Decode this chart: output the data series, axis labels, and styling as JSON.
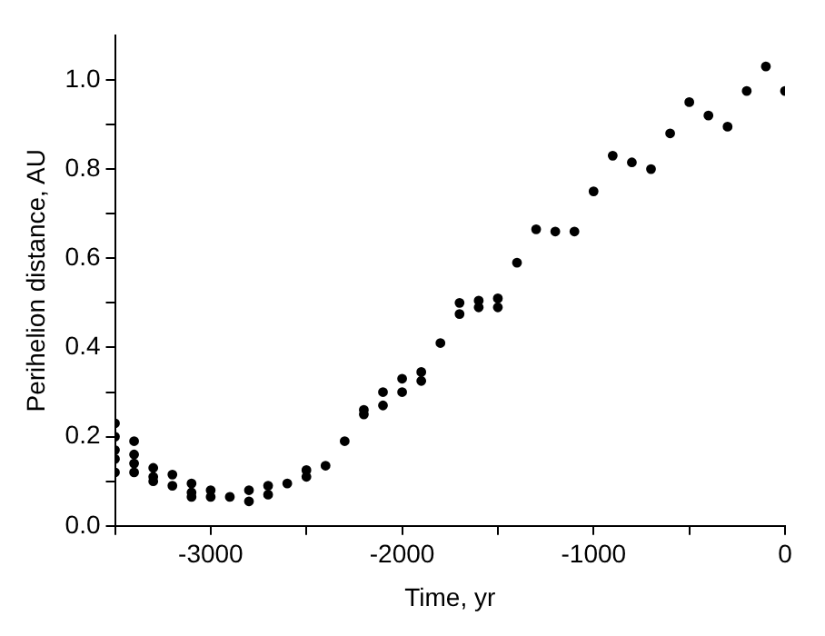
{
  "chart_data": {
    "type": "scatter",
    "xlabel": "Time, yr",
    "ylabel": "Perihelion distance, AU",
    "xlim": [
      -3500,
      0
    ],
    "xticks": [
      {
        "value": -3500,
        "label": null
      },
      -3000,
      {
        "value": -2500,
        "label": null
      },
      -2000,
      {
        "value": -1500,
        "label": null
      },
      -1000,
      {
        "value": -500,
        "label": null
      },
      0
    ],
    "ylim": [
      0,
      1.1
    ],
    "yticks": [
      {
        "value": 0,
        "label": "0.0"
      },
      {
        "value": 0.1,
        "label": null
      },
      {
        "value": 0.2,
        "label": "0.2"
      },
      {
        "value": 0.3,
        "label": null
      },
      {
        "value": 0.4,
        "label": "0.4"
      },
      {
        "value": 0.5,
        "label": null
      },
      {
        "value": 0.6,
        "label": "0.6"
      },
      {
        "value": 0.7,
        "label": null
      },
      {
        "value": 0.8,
        "label": "0.8"
      },
      {
        "value": 0.9,
        "label": null
      },
      {
        "value": 1.0,
        "label": "1.0"
      }
    ],
    "grid": false,
    "legend": false,
    "marker": "circle",
    "series": [
      {
        "color": "#000000",
        "x": [
          -3500,
          -3500,
          -3500,
          -3500,
          -3500,
          -3400,
          -3400,
          -3400,
          -3400,
          -3300,
          -3300,
          -3300,
          -3200,
          -3200,
          -3100,
          -3100,
          -3100,
          -3000,
          -3000,
          -2900,
          -2800,
          -2800,
          -2700,
          -2700,
          -2600,
          -2500,
          -2500,
          -2400,
          -2300,
          -2200,
          -2200,
          -2100,
          -2100,
          -2000,
          -2000,
          -1900,
          -1900,
          -1800,
          -1700,
          -1700,
          -1600,
          -1600,
          -1500,
          -1500,
          -1400,
          -1300,
          -1200,
          -1100,
          -1000,
          -900,
          -800,
          -700,
          -600,
          -500,
          -400,
          -300,
          -200,
          -100,
          0
        ],
        "values": [
          0.23,
          0.2,
          0.17,
          0.15,
          0.12,
          0.19,
          0.16,
          0.14,
          0.12,
          0.13,
          0.11,
          0.1,
          0.115,
          0.09,
          0.095,
          0.075,
          0.065,
          0.08,
          0.065,
          0.065,
          0.08,
          0.055,
          0.09,
          0.07,
          0.095,
          0.125,
          0.11,
          0.135,
          0.19,
          0.26,
          0.25,
          0.3,
          0.27,
          0.33,
          0.3,
          0.345,
          0.325,
          0.41,
          0.5,
          0.475,
          0.505,
          0.49,
          0.51,
          0.49,
          0.59,
          0.665,
          0.66,
          0.66,
          0.75,
          0.83,
          0.815,
          0.8,
          0.88,
          0.95,
          0.92,
          0.895,
          0.975,
          1.03,
          0.975
        ]
      }
    ]
  }
}
